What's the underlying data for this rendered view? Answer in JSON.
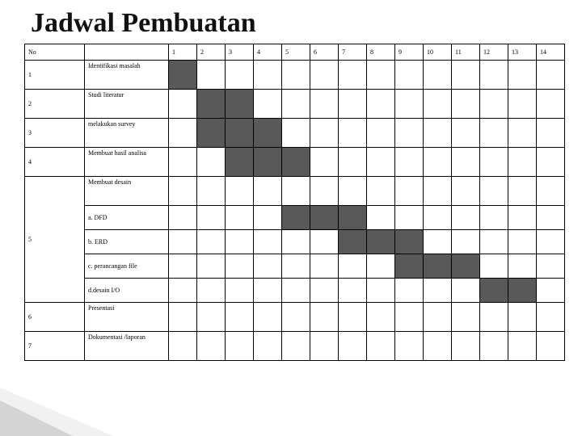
{
  "title": "Jadwal Pembuatan",
  "header_no": "No",
  "weeks": [
    "1",
    "2",
    "3",
    "4",
    "5",
    "6",
    "7",
    "8",
    "9",
    "10",
    "11",
    "12",
    "13",
    "14"
  ],
  "fill_color": "#595959",
  "rows": [
    {
      "no": "1",
      "activity": "Identifikasi masalah",
      "bars": [
        1
      ]
    },
    {
      "no": "2",
      "activity": "Studi literatur",
      "bars": [
        2,
        3
      ]
    },
    {
      "no": "3",
      "activity": "melakukan survey",
      "bars": [
        2,
        3,
        4
      ]
    },
    {
      "no": "4",
      "activity": "Membuat hasil analisa",
      "bars": [
        3,
        4,
        5
      ]
    },
    {
      "no": "5",
      "activity": "Membuat desain",
      "bars": []
    },
    {
      "no": "",
      "activity": "a. DFD",
      "sub": true,
      "bars": [
        5,
        6,
        7
      ]
    },
    {
      "no": "",
      "activity": "b. ERD",
      "sub": true,
      "bars": [
        7,
        8,
        9
      ]
    },
    {
      "no": "",
      "activity": "c. perancangan file",
      "sub": true,
      "bars": [
        9,
        10,
        11
      ]
    },
    {
      "no": "",
      "activity": "d.desain I/O",
      "sub": true,
      "bars": [
        12,
        13
      ]
    },
    {
      "no": "6",
      "activity": "Presentasi",
      "bars": []
    },
    {
      "no": "7",
      "activity": "Dokumentasi /laporan",
      "bars": []
    }
  ]
}
